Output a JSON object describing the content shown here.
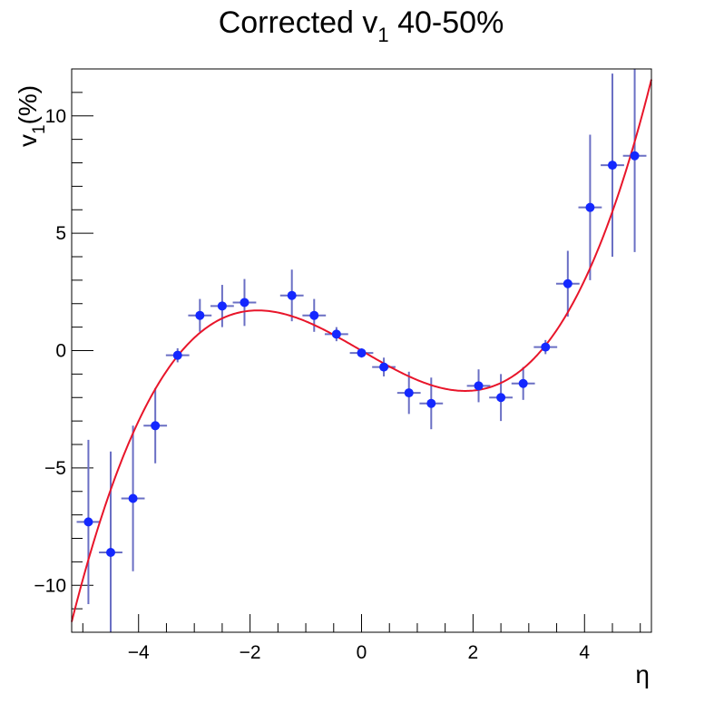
{
  "chart_data": {
    "type": "scatter",
    "title": "Corrected v",
    "title_sub": "1",
    "title_tail": " 40-50%",
    "xlabel": "η",
    "ylabel": "v",
    "ylabel_sub": "1",
    "ylabel_tail": "(%)",
    "xlim": [
      -5.2,
      5.2
    ],
    "ylim": [
      -12,
      12
    ],
    "xticks": [
      -4,
      -2,
      0,
      2,
      4
    ],
    "xtick_labels": [
      "−4",
      "−2",
      "0",
      "2",
      "4"
    ],
    "yticks": [
      -10,
      -5,
      0,
      5,
      10
    ],
    "ytick_labels": [
      "−10",
      "−5",
      "0",
      "5",
      "10"
    ],
    "grid": false,
    "points": [
      {
        "x": -4.9,
        "y": -7.3,
        "xerr": 0.21,
        "yerr": 3.5
      },
      {
        "x": -4.5,
        "y": -8.6,
        "xerr": 0.21,
        "yerr": 4.3
      },
      {
        "x": -4.1,
        "y": -6.3,
        "xerr": 0.21,
        "yerr": 3.1
      },
      {
        "x": -3.7,
        "y": -3.2,
        "xerr": 0.21,
        "yerr": 1.6
      },
      {
        "x": -3.3,
        "y": -0.2,
        "xerr": 0.21,
        "yerr": 0.3
      },
      {
        "x": -2.9,
        "y": 1.5,
        "xerr": 0.21,
        "yerr": 0.7
      },
      {
        "x": -2.5,
        "y": 1.9,
        "xerr": 0.21,
        "yerr": 0.9
      },
      {
        "x": -2.1,
        "y": 2.05,
        "xerr": 0.21,
        "yerr": 1.0
      },
      {
        "x": -1.25,
        "y": 2.35,
        "xerr": 0.21,
        "yerr": 1.1
      },
      {
        "x": -0.85,
        "y": 1.5,
        "xerr": 0.21,
        "yerr": 0.7
      },
      {
        "x": -0.45,
        "y": 0.7,
        "xerr": 0.21,
        "yerr": 0.3
      },
      {
        "x": 0.0,
        "y": -0.1,
        "xerr": 0.21,
        "yerr": 0.2
      },
      {
        "x": 0.4,
        "y": -0.7,
        "xerr": 0.21,
        "yerr": 0.4
      },
      {
        "x": 0.85,
        "y": -1.8,
        "xerr": 0.21,
        "yerr": 0.9
      },
      {
        "x": 1.25,
        "y": -2.25,
        "xerr": 0.21,
        "yerr": 1.1
      },
      {
        "x": 2.1,
        "y": -1.5,
        "xerr": 0.21,
        "yerr": 0.7
      },
      {
        "x": 2.5,
        "y": -2.0,
        "xerr": 0.21,
        "yerr": 1.0
      },
      {
        "x": 2.9,
        "y": -1.4,
        "xerr": 0.21,
        "yerr": 0.7
      },
      {
        "x": 3.3,
        "y": 0.15,
        "xerr": 0.21,
        "yerr": 0.3
      },
      {
        "x": 3.7,
        "y": 2.85,
        "xerr": 0.21,
        "yerr": 1.4
      },
      {
        "x": 4.1,
        "y": 6.1,
        "xerr": 0.21,
        "yerr": 3.1
      },
      {
        "x": 4.5,
        "y": 7.9,
        "xerr": 0.21,
        "yerr": 3.9
      },
      {
        "x": 4.9,
        "y": 8.3,
        "xerr": 0.21,
        "yerr": 4.1
      }
    ],
    "fit": {
      "type": "cubic",
      "a": -0.00316,
      "b": -1.3833,
      "c": 0.0,
      "d": 0.13333,
      "color": "#e8152a"
    },
    "marker_color": "#1428ff",
    "errorbar_color": "#6a6fc4"
  }
}
